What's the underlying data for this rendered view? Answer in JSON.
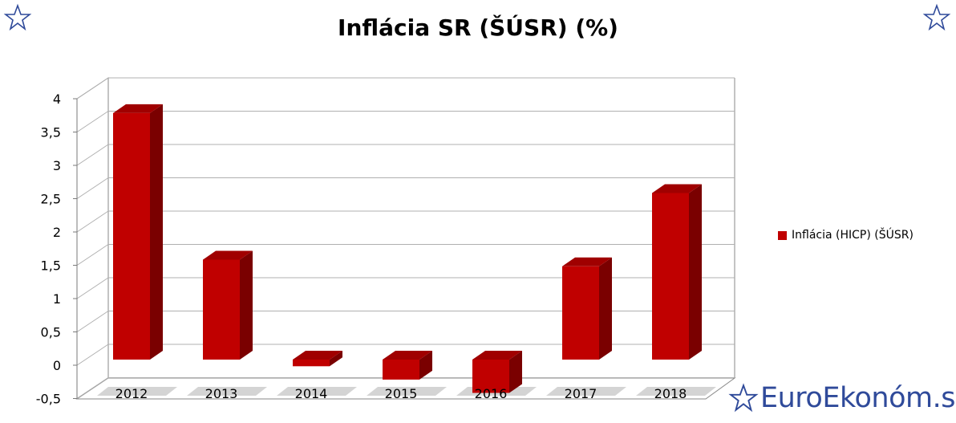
{
  "chart_data": {
    "type": "bar",
    "title": "Inflácia SR (ŠÚSR) (%)",
    "categories": [
      "2012",
      "2013",
      "2014",
      "2015",
      "2016",
      "2017",
      "2018"
    ],
    "series": [
      {
        "name": "Inflácia (HICP) (ŠÚSR)",
        "values": [
          3.7,
          1.5,
          -0.1,
          -0.3,
          -0.5,
          1.4,
          2.5
        ]
      }
    ],
    "ylim": [
      -0.5,
      4
    ],
    "yticks": [
      "-0,5",
      "0",
      "0,5",
      "1",
      "1,5",
      "2",
      "2,5",
      "3",
      "3,5",
      "4"
    ],
    "grid": true,
    "legend_position": "right",
    "colors": {
      "bar_front": "#c00000",
      "bar_side": "#7a0000",
      "bar_top": "#a00000",
      "grid": "#b0b0b0",
      "floor_shadow": "#b8b8b8"
    }
  },
  "branding": {
    "text": "EuroEkonóm.sk",
    "color": "#2f4a9a"
  }
}
